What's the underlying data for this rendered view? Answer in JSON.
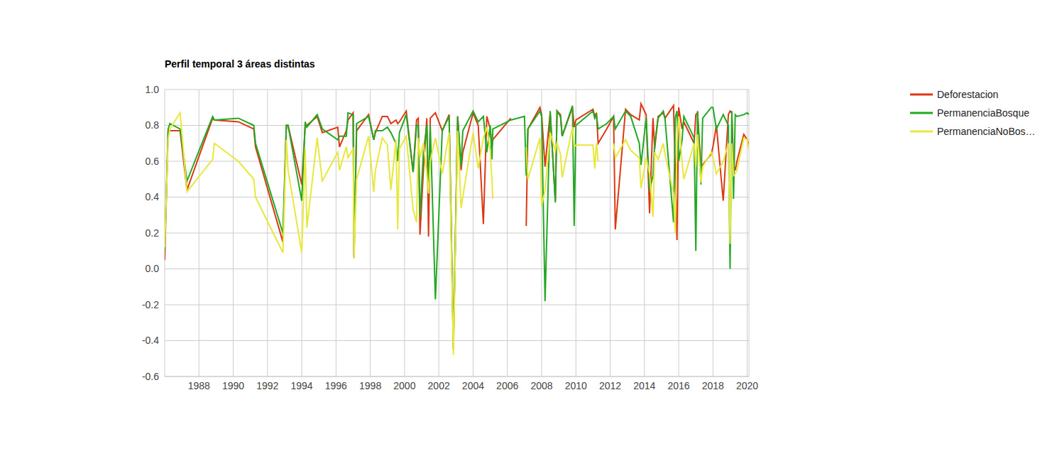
{
  "chart_data": {
    "type": "line",
    "title": "Perfil temporal 3 áreas distintas",
    "x": [
      1986.0,
      1986.2,
      1986.3,
      1986.9,
      1987.3,
      1988.8,
      1988.9,
      1990.3,
      1991.2,
      1991.3,
      1992.9,
      1993.1,
      1993.2,
      1994.0,
      1994.2,
      1994.3,
      1994.9,
      1995.2,
      1996.1,
      1996.2,
      1996.6,
      1996.7,
      1997.0,
      1997.05,
      1997.2,
      1997.9,
      1998.2,
      1998.3,
      1998.7,
      1999.0,
      1999.2,
      1999.5,
      1999.6,
      1999.7,
      2000.1,
      2000.5,
      2000.7,
      2000.8,
      2000.9,
      2001.1,
      2001.3,
      2001.4,
      2001.5,
      2001.8,
      2002.2,
      2002.6,
      2002.85,
      2003.1,
      2003.3,
      2003.4,
      2004.0,
      2004.3,
      2004.6,
      2004.8,
      2005.0,
      2005.1,
      2005.15,
      2006.2,
      2007.0,
      2007.1,
      2007.2,
      2007.9,
      2008.0,
      2008.2,
      2008.5,
      2008.8,
      2008.9,
      2009.1,
      2009.2,
      2009.8,
      2009.9,
      2010.0,
      2011.0,
      2011.1,
      2011.2,
      2011.3,
      2011.8,
      2012.2,
      2012.3,
      2012.9,
      2013.2,
      2013.7,
      2013.8,
      2014.1,
      2014.3,
      2014.5,
      2014.6,
      2014.8,
      2015.1,
      2015.2,
      2015.7,
      2015.8,
      2015.9,
      2016.0,
      2016.2,
      2016.3,
      2016.9,
      2017.0,
      2017.1,
      2017.3,
      2017.4,
      2017.9,
      2018.0,
      2018.2,
      2018.6,
      2018.9,
      2019.0,
      2019.1,
      2019.2,
      2019.3,
      2019.4,
      2019.8,
      2020.0,
      2020.1
    ],
    "series": [
      {
        "name": "Deforestacion",
        "color": "#dc3912",
        "values": [
          0.05,
          0.77,
          0.77,
          0.77,
          0.44,
          0.84,
          0.83,
          0.82,
          0.78,
          0.68,
          0.15,
          0.8,
          0.8,
          0.47,
          0.79,
          0.8,
          0.85,
          0.76,
          0.79,
          0.68,
          0.77,
          0.83,
          0.87,
          0.06,
          0.77,
          0.86,
          0.72,
          0.76,
          0.85,
          0.85,
          0.81,
          0.83,
          0.81,
          0.82,
          0.88,
          0.54,
          0.83,
          0.84,
          0.19,
          0.55,
          0.84,
          0.18,
          0.84,
          0.87,
          0.77,
          0.86,
          -0.45,
          0.85,
          0.55,
          0.65,
          0.87,
          0.8,
          0.25,
          0.85,
          0.78,
          0.68,
          0.72,
          0.84,
          null,
          0.24,
          0.78,
          0.9,
          0.86,
          0.57,
          0.87,
          0.38,
          0.88,
          0.86,
          0.74,
          0.9,
          0.79,
          0.83,
          0.89,
          0.85,
          0.87,
          0.7,
          0.78,
          0.85,
          0.22,
          0.89,
          0.86,
          0.83,
          0.92,
          0.86,
          0.31,
          0.84,
          0.67,
          0.85,
          0.87,
          0.84,
          0.91,
          0.55,
          0.16,
          0.9,
          0.78,
          0.82,
          0.7,
          0.86,
          0.87,
          0.56,
          0.58,
          0.64,
          0.68,
          0.8,
          0.38,
          0.86,
          0.88,
          0.87,
          0.58,
          0.55,
          0.6,
          0.75,
          0.72,
          0.69
        ]
      },
      {
        "name": "PermanenciaBosque",
        "color": "#22a822",
        "values": [
          0.1,
          0.78,
          0.81,
          0.78,
          0.49,
          0.85,
          0.83,
          0.84,
          0.8,
          0.7,
          0.2,
          0.8,
          0.8,
          0.38,
          0.82,
          0.79,
          0.86,
          0.78,
          0.72,
          0.74,
          0.74,
          0.87,
          0.86,
          0.07,
          0.81,
          0.85,
          0.72,
          0.77,
          0.77,
          0.79,
          0.76,
          0.7,
          0.6,
          0.76,
          0.86,
          0.54,
          0.8,
          0.8,
          0.29,
          0.65,
          0.8,
          0.44,
          0.8,
          -0.17,
          0.77,
          0.85,
          -0.43,
          0.85,
          0.57,
          0.77,
          0.88,
          0.82,
          0.85,
          0.65,
          0.8,
          0.61,
          0.78,
          0.83,
          0.85,
          0.52,
          0.78,
          0.88,
          0.85,
          -0.18,
          0.88,
          0.37,
          0.88,
          0.85,
          0.74,
          0.91,
          0.24,
          0.8,
          0.88,
          0.84,
          0.86,
          0.78,
          0.81,
          0.85,
          0.78,
          0.88,
          0.85,
          0.7,
          0.58,
          0.84,
          0.44,
          0.52,
          0.7,
          0.84,
          0.88,
          0.84,
          0.26,
          0.84,
          0.88,
          0.6,
          0.72,
          0.85,
          0.73,
          0.1,
          0.88,
          0.47,
          0.84,
          0.9,
          0.9,
          0.78,
          0.86,
          0.8,
          0.0,
          0.88,
          0.39,
          0.86,
          0.85,
          0.86,
          0.87,
          0.86
        ]
      },
      {
        "name": "PermanenciaNoBos…",
        "color": "#e8e83c",
        "values": [
          0.12,
          0.72,
          0.78,
          0.87,
          0.43,
          0.61,
          0.7,
          0.6,
          0.5,
          0.4,
          0.09,
          0.72,
          0.55,
          0.09,
          0.67,
          0.23,
          0.73,
          0.49,
          0.65,
          0.55,
          0.68,
          0.62,
          0.67,
          0.06,
          0.5,
          0.74,
          0.43,
          0.55,
          0.73,
          0.69,
          0.44,
          0.72,
          0.22,
          0.67,
          0.74,
          0.33,
          0.26,
          0.73,
          0.62,
          0.7,
          0.53,
          0.42,
          0.6,
          0.73,
          0.53,
          0.76,
          -0.48,
          0.77,
          0.34,
          0.4,
          0.76,
          0.56,
          0.73,
          0.79,
          0.66,
          0.5,
          0.39,
          null,
          null,
          0.68,
          0.5,
          0.73,
          0.35,
          0.44,
          0.76,
          0.66,
          0.7,
          0.64,
          0.51,
          0.79,
          0.68,
          0.69,
          0.69,
          0.56,
          0.7,
          0.6,
          null,
          0.7,
          0.62,
          0.72,
          0.66,
          0.62,
          0.45,
          0.62,
          0.53,
          0.29,
          0.65,
          0.61,
          0.7,
          0.64,
          0.42,
          0.2,
          0.7,
          0.85,
          0.59,
          0.5,
          0.7,
          0.57,
          0.75,
          0.48,
          0.57,
          0.65,
          0.62,
          0.53,
          0.6,
          0.7,
          0.14,
          0.7,
          0.52,
          0.53,
          0.55,
          0.73,
          0.72,
          0.67
        ]
      }
    ],
    "xlim": [
      1986,
      2020.1
    ],
    "xticks": [
      1988,
      1990,
      1992,
      1994,
      1996,
      1998,
      2000,
      2002,
      2004,
      2006,
      2008,
      2010,
      2012,
      2014,
      2016,
      2018,
      2020
    ],
    "ylim": [
      -0.6,
      1
    ],
    "yticks": [
      -0.6,
      -0.4,
      -0.2,
      {
        "value": 0,
        "label": "0.0"
      },
      0.2,
      0.4,
      0.6,
      0.8,
      {
        "value": 1,
        "label": "1.0"
      }
    ],
    "grid": true,
    "legend": "right"
  }
}
